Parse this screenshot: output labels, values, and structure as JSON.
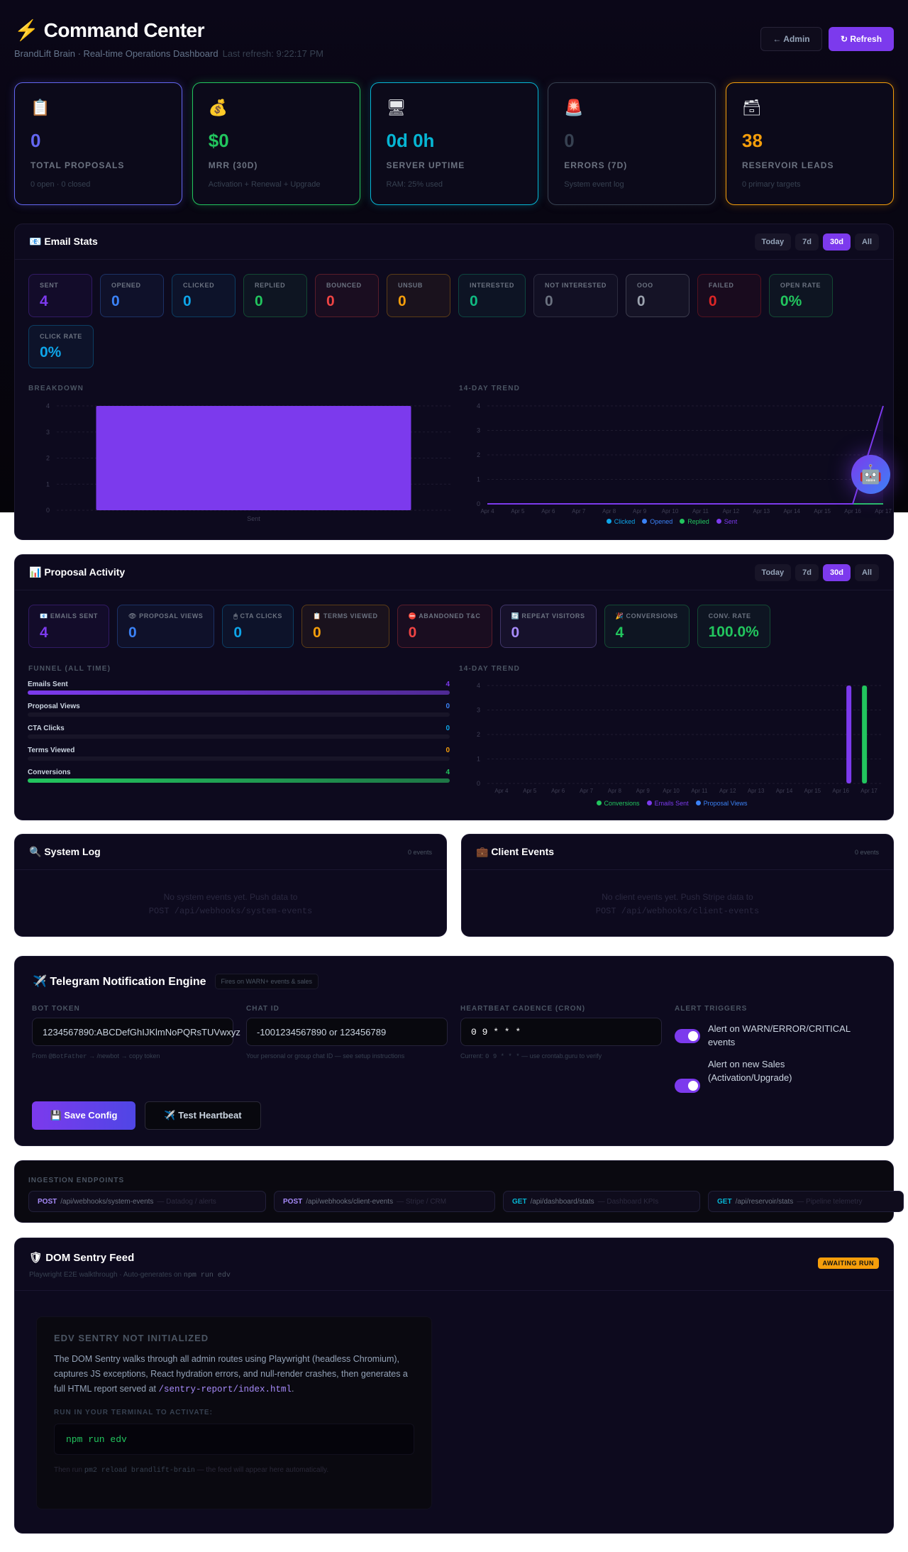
{
  "header": {
    "icon": "lightning-icon",
    "title": "Command Center",
    "subtitle": "BrandLift Brain · Real-time Operations Dashboard",
    "last_refresh": "Last refresh: 9:22:17 PM",
    "admin_label": "← Admin",
    "refresh_label": "↻ Refresh"
  },
  "kpis": [
    {
      "icon": "📋",
      "value": "0",
      "label": "TOTAL PROPOSALS",
      "sub": "0 open · 0 closed",
      "color": "#6366f1"
    },
    {
      "icon": "💰",
      "value": "$0",
      "label": "MRR (30D)",
      "sub": "Activation + Renewal + Upgrade",
      "color": "#22c55e"
    },
    {
      "icon": "🖥",
      "value": "0d 0h",
      "label": "SERVER UPTIME",
      "sub": "RAM: 25% used",
      "color": "#06b6d4"
    },
    {
      "icon": "🚨",
      "value": "0",
      "label": "ERRORS (7D)",
      "sub": "System event log",
      "color": "#374151"
    },
    {
      "icon": "🗃",
      "value": "38",
      "label": "RESERVOIR LEADS",
      "sub": "0 primary targets",
      "color": "#f59e0b"
    }
  ],
  "ranges": [
    "Today",
    "7d",
    "30d",
    "All"
  ],
  "active_range": "30d",
  "email": {
    "title": "📧 Email Stats",
    "tiles": [
      {
        "label": "SENT",
        "value": "4",
        "color": "#7c3aed"
      },
      {
        "label": "OPENED",
        "value": "0",
        "color": "#3b82f6"
      },
      {
        "label": "CLICKED",
        "value": "0",
        "color": "#0ea5e9"
      },
      {
        "label": "REPLIED",
        "value": "0",
        "color": "#22c55e"
      },
      {
        "label": "BOUNCED",
        "value": "0",
        "color": "#ef4444"
      },
      {
        "label": "UNSUB",
        "value": "0",
        "color": "#f59e0b"
      },
      {
        "label": "INTERESTED",
        "value": "0",
        "color": "#10b981"
      },
      {
        "label": "NOT INTERESTED",
        "value": "0",
        "color": "#6b7280"
      },
      {
        "label": "OOO",
        "value": "0",
        "color": "#9ca3af"
      },
      {
        "label": "FAILED",
        "value": "0",
        "color": "#dc2626"
      },
      {
        "label": "OPEN RATE",
        "value": "0%",
        "color": "#22c55e"
      },
      {
        "label": "CLICK RATE",
        "value": "0%",
        "color": "#0ea5e9"
      }
    ],
    "breakdown_label": "BREAKDOWN",
    "trend_label": "14-DAY TREND"
  },
  "proposal": {
    "title": "📊 Proposal Activity",
    "tiles": [
      {
        "label": "📧 EMAILS SENT",
        "value": "4",
        "color": "#7c3aed"
      },
      {
        "label": "👁 PROPOSAL VIEWS",
        "value": "0",
        "color": "#3b82f6"
      },
      {
        "label": "🖱 CTA CLICKS",
        "value": "0",
        "color": "#0ea5e9"
      },
      {
        "label": "📋 TERMS VIEWED",
        "value": "0",
        "color": "#f59e0b"
      },
      {
        "label": "⛔ ABANDONED T&C",
        "value": "0",
        "color": "#ef4444"
      },
      {
        "label": "🔄 REPEAT VISITORS",
        "value": "0",
        "color": "#a78bfa"
      },
      {
        "label": "🎉 CONVERSIONS",
        "value": "4",
        "color": "#22c55e"
      },
      {
        "label": "CONV. RATE",
        "value": "100.0%",
        "color": "#22c55e"
      }
    ],
    "funnel_label": "FUNNEL (ALL TIME)",
    "funnel": [
      {
        "label": "Emails Sent",
        "value": 4,
        "color": "#7c3aed"
      },
      {
        "label": "Proposal Views",
        "value": 0,
        "color": "#3b82f6"
      },
      {
        "label": "CTA Clicks",
        "value": 0,
        "color": "#0ea5e9"
      },
      {
        "label": "Terms Viewed",
        "value": 0,
        "color": "#f59e0b"
      },
      {
        "label": "Conversions",
        "value": 4,
        "color": "#22c55e"
      }
    ],
    "trend_label": "14-DAY TREND"
  },
  "chart_data": [
    {
      "type": "bar",
      "categories": [
        "Sent"
      ],
      "values": [
        4
      ],
      "ylim": [
        0,
        4
      ],
      "yticks": [
        0,
        1,
        2,
        3,
        4
      ],
      "grid": true,
      "color": "#7c3aed"
    },
    {
      "type": "line",
      "x": [
        "Apr 4",
        "Apr 5",
        "Apr 6",
        "Apr 7",
        "Apr 8",
        "Apr 9",
        "Apr 10",
        "Apr 11",
        "Apr 12",
        "Apr 13",
        "Apr 14",
        "Apr 15",
        "Apr 16",
        "Apr 17"
      ],
      "ylim": [
        0,
        4
      ],
      "yticks": [
        0,
        1,
        2,
        3,
        4
      ],
      "grid": true,
      "legend": "bottom",
      "series": [
        {
          "name": "Clicked",
          "color": "#0ea5e9",
          "values": [
            0,
            0,
            0,
            0,
            0,
            0,
            0,
            0,
            0,
            0,
            0,
            0,
            0,
            0
          ]
        },
        {
          "name": "Opened",
          "color": "#3b82f6",
          "values": [
            0,
            0,
            0,
            0,
            0,
            0,
            0,
            0,
            0,
            0,
            0,
            0,
            0,
            0
          ]
        },
        {
          "name": "Replied",
          "color": "#22c55e",
          "values": [
            0,
            0,
            0,
            0,
            0,
            0,
            0,
            0,
            0,
            0,
            0,
            0,
            0,
            0
          ]
        },
        {
          "name": "Sent",
          "color": "#7c3aed",
          "values": [
            0,
            0,
            0,
            0,
            0,
            0,
            0,
            0,
            0,
            0,
            0,
            0,
            0,
            4
          ]
        }
      ]
    },
    {
      "type": "bar",
      "x": [
        "Apr 4",
        "Apr 5",
        "Apr 6",
        "Apr 7",
        "Apr 8",
        "Apr 9",
        "Apr 10",
        "Apr 11",
        "Apr 12",
        "Apr 13",
        "Apr 14",
        "Apr 15",
        "Apr 16",
        "Apr 17"
      ],
      "ylim": [
        0,
        4
      ],
      "yticks": [
        0,
        1,
        2,
        3,
        4
      ],
      "grid": true,
      "legend": "bottom",
      "series": [
        {
          "name": "Emails Sent",
          "color": "#7c3aed",
          "values": [
            0,
            0,
            0,
            0,
            0,
            0,
            0,
            0,
            0,
            0,
            0,
            0,
            0,
            4
          ]
        },
        {
          "name": "Conversions",
          "color": "#22c55e",
          "values": [
            0,
            0,
            0,
            0,
            0,
            0,
            0,
            0,
            0,
            0,
            0,
            0,
            0,
            4
          ]
        },
        {
          "name": "Proposal Views",
          "color": "#3b82f6",
          "values": [
            0,
            0,
            0,
            0,
            0,
            0,
            0,
            0,
            0,
            0,
            0,
            0,
            0,
            0
          ]
        }
      ],
      "legend_order": [
        "Conversions",
        "Emails Sent",
        "Proposal Views"
      ]
    }
  ],
  "system_log": {
    "title": "🔍 System Log",
    "count": "0 events",
    "empty": "No system events yet. Push data to",
    "endpoint": "POST /api/webhooks/system-events"
  },
  "client_events": {
    "title": "💼 Client Events",
    "count": "0 events",
    "empty": "No client events yet. Push Stripe data to",
    "endpoint": "POST /api/webhooks/client-events"
  },
  "telegram": {
    "title": "✈️ Telegram Notification Engine",
    "badge": "Fires on WARN+ events & sales",
    "bot_token_label": "BOT TOKEN",
    "bot_token_value": "1234567890:ABCDefGhIJKlmNoPQRsTUVwxyz",
    "bot_token_help_pre": "From ",
    "bot_token_help_code": "@BotFather",
    "bot_token_help_post": " → /newbot → copy token",
    "chat_id_label": "CHAT ID",
    "chat_id_value": "-1001234567890 or 123456789",
    "chat_id_help": "Your personal or group chat ID — see setup instructions",
    "cron_label": "HEARTBEAT CADENCE (CRON)",
    "cron_value": "0 9 * * *",
    "cron_help_pre": "Current: ",
    "cron_help_code": "0 9 * * *",
    "cron_help_post": " — use crontab.guru to verify",
    "triggers_label": "ALERT TRIGGERS",
    "trigger1": "Alert on WARN/ERROR/CRITICAL events",
    "trigger1_on": true,
    "trigger2": "Alert on new Sales (Activation/Upgrade)",
    "trigger2_on": true,
    "save_label": "💾 Save Config",
    "test_label": "✈️ Test Heartbeat"
  },
  "ingestion": {
    "title": "INGESTION ENDPOINTS",
    "endpoints": [
      {
        "method": "POST",
        "path": "/api/webhooks/system-events",
        "desc": "— Datadog / alerts",
        "color": "#a78bfa"
      },
      {
        "method": "POST",
        "path": "/api/webhooks/client-events",
        "desc": "— Stripe / CRM",
        "color": "#a78bfa"
      },
      {
        "method": "GET",
        "path": "/api/dashboard/stats",
        "desc": "— Dashboard KPIs",
        "color": "#06b6d4"
      },
      {
        "method": "GET",
        "path": "/api/reservoir/stats",
        "desc": "— Pipeline telemetry",
        "color": "#06b6d4"
      }
    ]
  },
  "sentry": {
    "title": "🛡 DOM Sentry Feed",
    "subtitle_pre": "Playwright E2E walkthrough · Auto-generates on ",
    "subtitle_code": "npm run edv",
    "status": "AWAITING RUN",
    "box_title": "EDV SENTRY NOT INITIALIZED",
    "body": "The DOM Sentry walks through all admin routes using Playwright (headless Chromium), captures JS exceptions, React hydration errors, and null-render crashes, then generates a full HTML report served at ",
    "body_code": "/sentry-report/index.html",
    "body_end": ".",
    "run_label": "RUN IN YOUR TERMINAL TO ACTIVATE:",
    "command": "npm run edv",
    "footer_pre": "Then run ",
    "footer_code": "pm2 reload brandlift-brain",
    "footer_post": " — the feed will appear here automatically."
  },
  "fab": {
    "icon": "🤖"
  }
}
